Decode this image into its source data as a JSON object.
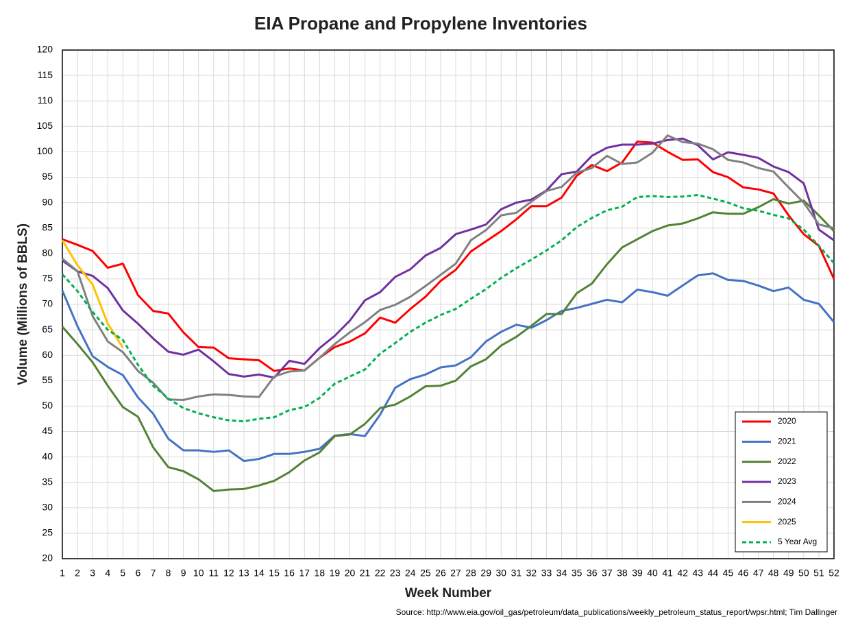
{
  "chart_data": {
    "type": "line",
    "title": "EIA Propane and Propylene Inventories",
    "x_label": "Week Number",
    "y_label": "Volume (Millions of BBLS)",
    "source": "Source: http://www.eia.gov/oil_gas/petroleum/data_publications/weekly_petroleum_status_report/wpsr.html; Tim Dallinger",
    "x": [
      1,
      2,
      3,
      4,
      5,
      6,
      7,
      8,
      9,
      10,
      11,
      12,
      13,
      14,
      15,
      16,
      17,
      18,
      19,
      20,
      21,
      22,
      23,
      24,
      25,
      26,
      27,
      28,
      29,
      30,
      31,
      32,
      33,
      34,
      35,
      36,
      37,
      38,
      39,
      40,
      41,
      42,
      43,
      44,
      45,
      46,
      47,
      48,
      49,
      50,
      51,
      52
    ],
    "xlim": [
      1,
      52
    ],
    "xticks": [
      1,
      2,
      3,
      4,
      5,
      6,
      7,
      8,
      9,
      10,
      11,
      12,
      13,
      14,
      15,
      16,
      17,
      18,
      19,
      20,
      21,
      22,
      23,
      24,
      25,
      26,
      27,
      28,
      29,
      30,
      31,
      32,
      33,
      34,
      35,
      36,
      37,
      38,
      39,
      40,
      41,
      42,
      43,
      44,
      45,
      46,
      47,
      48,
      49,
      50,
      51,
      52
    ],
    "ylim": [
      20,
      120
    ],
    "yticks": [
      20,
      25,
      30,
      35,
      40,
      45,
      50,
      55,
      60,
      65,
      70,
      75,
      80,
      85,
      90,
      95,
      100,
      105,
      110,
      115,
      120
    ],
    "grid": true,
    "legend": "lower right",
    "series": [
      {
        "name": "2020",
        "color": "#ff0000",
        "dashed": false,
        "values": [
          82.8,
          81.7,
          80.5,
          77.2,
          78,
          71.8,
          68.7,
          68.2,
          64.5,
          61.6,
          61.5,
          59.4,
          59.2,
          59.0,
          56.9,
          57.4,
          57.0,
          59.5,
          61.6,
          62.7,
          64.3,
          67.4,
          66.4,
          69.1,
          71.5,
          74.6,
          76.8,
          80.4,
          82.4,
          84.4,
          86.7,
          89.3,
          89.3,
          91.0,
          95.3,
          97.4,
          96.2,
          97.9,
          102.0,
          101.8,
          100.0,
          98.4,
          98.5,
          96.0,
          95.0,
          93.0,
          92.6,
          91.8,
          87.5,
          83.8,
          81.5,
          75.0
        ]
      },
      {
        "name": "2021",
        "color": "#4472c4",
        "dashed": false,
        "values": [
          72.7,
          65.7,
          59.8,
          57.7,
          56.1,
          51.7,
          48.5,
          43.6,
          41.3,
          41.3,
          41.0,
          41.3,
          39.2,
          39.6,
          40.6,
          40.6,
          41.0,
          41.6,
          44.2,
          44.5,
          44.1,
          48.3,
          53.6,
          55.3,
          56.2,
          57.6,
          58.0,
          59.6,
          62.7,
          64.6,
          66.0,
          65.4,
          66.9,
          68.7,
          69.3,
          70.1,
          70.9,
          70.4,
          72.9,
          72.4,
          71.7,
          73.7,
          75.7,
          76.1,
          74.8,
          74.6,
          73.7,
          72.6,
          73.3,
          70.9,
          70.1,
          66.5
        ]
      },
      {
        "name": "2022",
        "color": "#548235",
        "dashed": false,
        "values": [
          65.6,
          62.2,
          58.6,
          54.0,
          49.8,
          47.9,
          41.9,
          38.0,
          37.2,
          35.6,
          33.3,
          33.6,
          33.7,
          34.4,
          35.3,
          37.0,
          39.3,
          40.9,
          44.1,
          44.4,
          46.5,
          49.6,
          50.3,
          51.9,
          53.9,
          54.0,
          55.0,
          57.8,
          59.2,
          61.9,
          63.6,
          65.8,
          68.1,
          68.1,
          72.2,
          74.1,
          77.9,
          81.2,
          82.8,
          84.4,
          85.5,
          85.9,
          86.9,
          88.1,
          87.8,
          87.8,
          89.1,
          90.7,
          89.8,
          90.4,
          87.5,
          84.4
        ]
      },
      {
        "name": "2023",
        "color": "#7030a0",
        "dashed": false,
        "values": [
          78.6,
          76.5,
          75.6,
          73.2,
          68.8,
          66.2,
          63.3,
          60.7,
          60.1,
          61.1,
          58.8,
          56.3,
          55.8,
          56.2,
          55.6,
          58.9,
          58.3,
          61.4,
          63.8,
          66.8,
          70.8,
          72.4,
          75.4,
          76.9,
          79.6,
          81.1,
          83.8,
          84.7,
          85.7,
          88.7,
          90.0,
          90.6,
          92.4,
          95.6,
          96.1,
          99.2,
          100.8,
          101.4,
          101.4,
          101.6,
          102.3,
          102.6,
          101.3,
          98.5,
          99.9,
          99.4,
          98.8,
          97.1,
          96.0,
          93.8,
          84.7,
          82.6
        ]
      },
      {
        "name": "2024",
        "color": "#808080",
        "dashed": false,
        "values": [
          79.0,
          76.5,
          67.7,
          62.7,
          60.6,
          56.9,
          54.6,
          51.3,
          51.2,
          51.9,
          52.3,
          52.2,
          51.9,
          51.8,
          55.8,
          56.8,
          57.0,
          59.5,
          62.2,
          64.5,
          66.5,
          68.9,
          69.9,
          71.5,
          73.6,
          75.8,
          78.0,
          82.6,
          84.6,
          87.5,
          88.0,
          90.2,
          92.3,
          93.1,
          95.9,
          96.8,
          99.2,
          97.6,
          97.9,
          99.8,
          103.2,
          101.9,
          101.6,
          100.5,
          98.4,
          97.9,
          96.8,
          96.1,
          93.0,
          90.0,
          85.7,
          85.0
        ]
      },
      {
        "name": "2025",
        "color": "#ffc000",
        "dashed": false,
        "values": [
          82.6,
          77.7,
          73.9,
          66.2,
          61.5,
          null,
          null,
          null,
          null,
          null,
          null,
          null,
          null,
          null,
          null,
          null,
          null,
          null,
          null,
          null,
          null,
          null,
          null,
          null,
          null,
          null,
          null,
          null,
          null,
          null,
          null,
          null,
          null,
          null,
          null,
          null,
          null,
          null,
          null,
          null,
          null,
          null,
          null,
          null,
          null,
          null,
          null,
          null,
          null,
          null,
          null,
          null
        ]
      },
      {
        "name": "5 Year Avg",
        "color": "#00b050",
        "dashed": true,
        "values": [
          75.9,
          72.6,
          68.5,
          65.0,
          63.0,
          58.1,
          54.0,
          51.5,
          49.6,
          48.6,
          47.8,
          47.2,
          47.0,
          47.5,
          47.8,
          49.2,
          49.8,
          51.6,
          54.4,
          55.8,
          57.2,
          60.3,
          62.4,
          64.6,
          66.4,
          67.9,
          69.1,
          71.1,
          73.0,
          75.2,
          77.1,
          78.8,
          80.6,
          82.6,
          85.2,
          87.0,
          88.5,
          89.2,
          91.1,
          91.3,
          91.1,
          91.2,
          91.5,
          90.8,
          90.0,
          88.9,
          88.4,
          87.6,
          86.9,
          84.7,
          81.5,
          78.1
        ]
      }
    ]
  }
}
